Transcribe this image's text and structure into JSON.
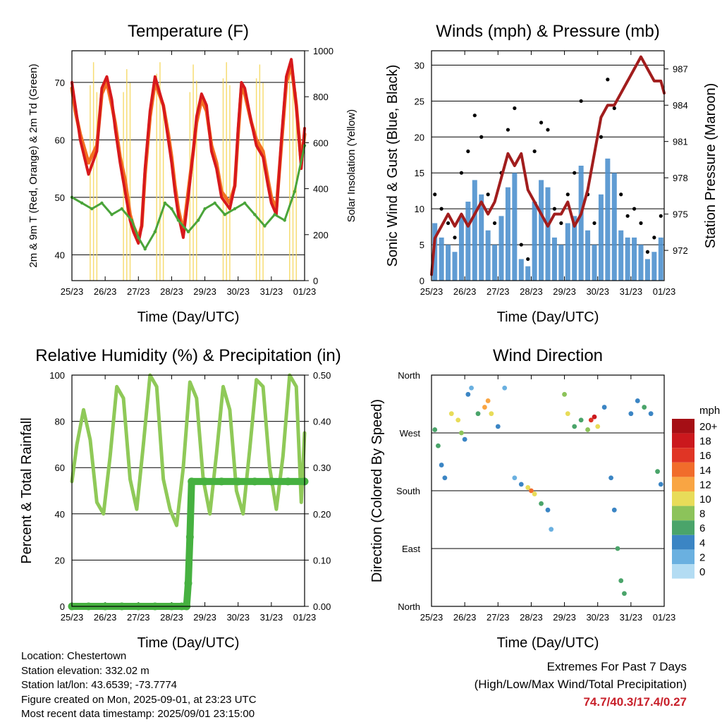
{
  "colors": {
    "temp2m": "#d7191c",
    "temp9m": "#f36f21",
    "dewpoint": "#4aa43a",
    "solar": "#f5d75a",
    "gust": "#000000",
    "wind": "#4f92cf",
    "pressure": "#a11d1d",
    "rh": "#8fc958",
    "precip": "#46b140",
    "grid": "#000000"
  },
  "x_ticks": [
    "25/23",
    "26/23",
    "27/23",
    "28/23",
    "29/23",
    "30/23",
    "31/23",
    "01/23"
  ],
  "chart_data": [
    {
      "type": "line",
      "title": "Temperature (F)",
      "xlabel": "Time (Day/UTC)",
      "ylabel": "2m & 9m T (Red, Orange) & 2m Td (Green)",
      "y2label": "Solar Insolation (Yellow)",
      "ylim": [
        35.5,
        75.5
      ],
      "yticks": [
        40,
        50,
        60,
        70
      ],
      "y2lim": [
        0,
        1000
      ],
      "y2ticks": [
        0,
        200,
        400,
        600,
        800,
        1000
      ],
      "x_days": [
        0,
        7
      ],
      "grid": true,
      "series": [
        {
          "key": "temp2m",
          "x": [
            0,
            0.1,
            0.25,
            0.5,
            0.75,
            0.9,
            1.05,
            1.2,
            1.3,
            1.45,
            1.6,
            1.75,
            1.85,
            2.0,
            2.1,
            2.2,
            2.35,
            2.5,
            2.75,
            2.9,
            3.0,
            3.1,
            3.2,
            3.35,
            3.5,
            3.65,
            3.75,
            3.9,
            4.05,
            4.2,
            4.35,
            4.5,
            4.75,
            4.9,
            5.0,
            5.1,
            5.2,
            5.4,
            5.55,
            5.75,
            5.9,
            6.0,
            6.15,
            6.3,
            6.45,
            6.6,
            6.75,
            6.9,
            7.0
          ],
          "y": [
            70,
            66,
            60,
            54,
            58,
            69,
            71,
            67,
            62,
            56,
            51,
            46,
            44,
            42,
            45,
            55,
            65,
            71,
            66,
            60,
            56,
            51,
            47,
            43,
            50,
            58,
            64,
            68,
            66,
            58,
            55,
            50,
            48,
            52,
            62,
            70,
            69,
            63,
            59,
            57,
            52,
            49,
            47,
            60,
            71,
            74,
            66,
            55,
            62
          ]
        },
        {
          "key": "temp9m",
          "x": [
            0,
            0.1,
            0.25,
            0.5,
            0.75,
            0.9,
            1.05,
            1.2,
            1.3,
            1.45,
            1.6,
            1.75,
            1.85,
            2.0,
            2.1,
            2.2,
            2.35,
            2.5,
            2.75,
            2.9,
            3.0,
            3.1,
            3.2,
            3.35,
            3.5,
            3.65,
            3.75,
            3.9,
            4.05,
            4.2,
            4.35,
            4.5,
            4.75,
            4.9,
            5.0,
            5.1,
            5.2,
            5.4,
            5.55,
            5.75,
            5.9,
            6.0,
            6.15,
            6.3,
            6.45,
            6.6,
            6.75,
            6.9,
            7.0
          ],
          "y": [
            69,
            65,
            61,
            56,
            59,
            68,
            70,
            66,
            63,
            57,
            53,
            47,
            45,
            43,
            45,
            54,
            64,
            70,
            66,
            61,
            57,
            52,
            48,
            44,
            51,
            58,
            63,
            67,
            65,
            59,
            56,
            51,
            49,
            52,
            61,
            69,
            68,
            63,
            60,
            58,
            53,
            50,
            48,
            59,
            70,
            73,
            66,
            56,
            61
          ]
        },
        {
          "key": "dewpoint",
          "x": [
            0,
            0.3,
            0.6,
            0.9,
            1.2,
            1.5,
            1.8,
            2.0,
            2.2,
            2.5,
            2.8,
            3.0,
            3.2,
            3.5,
            3.8,
            4.0,
            4.3,
            4.6,
            4.9,
            5.2,
            5.5,
            5.8,
            6.1,
            6.4,
            6.7,
            7.0
          ],
          "y": [
            50,
            49,
            48,
            49,
            47,
            48,
            46,
            43,
            41,
            44,
            49,
            48,
            46,
            44,
            46,
            48,
            49,
            47,
            48,
            49,
            47,
            45,
            47,
            46,
            51,
            59
          ]
        },
        {
          "key": "solar",
          "x": [
            0.55,
            0.65,
            0.75,
            1.55,
            1.65,
            1.75,
            2.55,
            2.65,
            2.75,
            3.55,
            3.65,
            3.75,
            4.55,
            4.65,
            4.75,
            5.55,
            5.65,
            5.75,
            6.55,
            6.65,
            6.75
          ],
          "y": [
            850,
            950,
            820,
            820,
            920,
            860,
            900,
            950,
            780,
            820,
            940,
            870,
            880,
            950,
            850,
            880,
            940,
            860,
            900,
            940,
            820
          ]
        }
      ]
    },
    {
      "type": "scatter",
      "title": "Winds (mph) & Pressure (mb)",
      "xlabel": "Time (Day/UTC)",
      "ylabel": "Sonic Wind & Gust (Blue, Black)",
      "y2label": "Station Pressure (Maroon)",
      "ylim": [
        0,
        32
      ],
      "yticks": [
        0,
        5,
        10,
        15,
        20,
        25,
        30
      ],
      "y2lim": [
        969.5,
        988.5
      ],
      "y2ticks": [
        972,
        975,
        978,
        981,
        984,
        987
      ],
      "x_days": [
        0,
        7
      ],
      "grid": true,
      "series": [
        {
          "key": "pressure",
          "x": [
            0,
            0.1,
            0.3,
            0.5,
            0.7,
            0.9,
            1.1,
            1.3,
            1.5,
            1.7,
            1.9,
            2.1,
            2.3,
            2.5,
            2.7,
            2.9,
            3.1,
            3.3,
            3.5,
            3.7,
            3.9,
            4.1,
            4.3,
            4.5,
            4.7,
            4.9,
            5.1,
            5.3,
            5.5,
            5.7,
            5.9,
            6.1,
            6.3,
            6.5,
            6.7,
            6.9,
            7.0
          ],
          "y": [
            970,
            973,
            974,
            975,
            974,
            975,
            974,
            975,
            976,
            975,
            976,
            978,
            980,
            979,
            980,
            977,
            976,
            975,
            974,
            975,
            975,
            976,
            974,
            975,
            977,
            980,
            983,
            984,
            984,
            985,
            986,
            987,
            988,
            987,
            986,
            986,
            985
          ]
        },
        {
          "key": "gust",
          "x": [
            0.1,
            0.3,
            0.5,
            0.7,
            0.9,
            1.1,
            1.3,
            1.5,
            1.7,
            1.9,
            2.1,
            2.3,
            2.5,
            2.7,
            2.9,
            3.1,
            3.3,
            3.5,
            3.7,
            3.9,
            4.1,
            4.3,
            4.5,
            4.7,
            4.9,
            5.1,
            5.3,
            5.5,
            5.7,
            5.9,
            6.1,
            6.3,
            6.5,
            6.7,
            6.9
          ],
          "y": [
            12,
            10,
            8,
            6,
            15,
            18,
            23,
            20,
            12,
            8,
            15,
            21,
            24,
            5,
            3,
            18,
            22,
            21,
            10,
            8,
            12,
            15,
            25,
            12,
            8,
            20,
            28,
            24,
            12,
            9,
            10,
            8,
            4,
            6,
            9
          ]
        },
        {
          "key": "wind",
          "x": [
            0.1,
            0.3,
            0.5,
            0.7,
            0.9,
            1.1,
            1.3,
            1.5,
            1.7,
            1.9,
            2.1,
            2.3,
            2.5,
            2.7,
            2.9,
            3.1,
            3.3,
            3.5,
            3.7,
            3.9,
            4.1,
            4.3,
            4.5,
            4.7,
            4.9,
            5.1,
            5.3,
            5.5,
            5.7,
            5.9,
            6.1,
            6.3,
            6.5,
            6.7,
            6.9
          ],
          "y": [
            8,
            6,
            5,
            4,
            9,
            11,
            14,
            12,
            7,
            5,
            9,
            13,
            15,
            3,
            2,
            11,
            14,
            13,
            6,
            5,
            8,
            9,
            16,
            7,
            5,
            12,
            17,
            15,
            7,
            6,
            6,
            5,
            3,
            4,
            6
          ]
        }
      ]
    },
    {
      "type": "line",
      "title": "Relative Humidity (%) & Precipitation (in)",
      "xlabel": "Time (Day/UTC)",
      "ylabel": "Percent & Total Rainfall",
      "ylim": [
        0,
        100
      ],
      "yticks": [
        0,
        20,
        40,
        60,
        80,
        100
      ],
      "y2lim": [
        0,
        0.5
      ],
      "y2ticks": [
        "0.00",
        "0.10",
        "0.20",
        "0.30",
        "0.40",
        "0.50"
      ],
      "x_days": [
        0,
        7
      ],
      "grid": true,
      "series": [
        {
          "key": "rh",
          "x": [
            0,
            0.15,
            0.35,
            0.55,
            0.75,
            0.95,
            1.15,
            1.35,
            1.55,
            1.75,
            1.95,
            2.15,
            2.35,
            2.55,
            2.75,
            2.95,
            3.15,
            3.35,
            3.55,
            3.75,
            3.95,
            4.15,
            4.35,
            4.55,
            4.75,
            4.95,
            5.15,
            5.35,
            5.55,
            5.75,
            5.95,
            6.15,
            6.35,
            6.55,
            6.75,
            6.9,
            7.0
          ],
          "y": [
            54,
            70,
            85,
            72,
            45,
            40,
            65,
            95,
            90,
            55,
            42,
            70,
            100,
            95,
            55,
            42,
            35,
            60,
            97,
            90,
            55,
            40,
            66,
            95,
            85,
            50,
            40,
            68,
            98,
            95,
            60,
            42,
            65,
            100,
            95,
            45,
            75
          ]
        },
        {
          "key": "precip",
          "x": [
            0,
            0.5,
            1.0,
            1.5,
            2.0,
            2.5,
            3.0,
            3.3,
            3.45,
            3.5,
            3.55,
            3.6,
            4.0,
            4.5,
            5.0,
            5.5,
            6.0,
            6.5,
            7.0
          ],
          "y": [
            0,
            0,
            0,
            0,
            0,
            0,
            0,
            0,
            0,
            0.05,
            0.15,
            0.27,
            0.27,
            0.27,
            0.27,
            0.27,
            0.27,
            0.27,
            0.27
          ]
        }
      ]
    },
    {
      "type": "scatter",
      "title": "Wind Direction",
      "xlabel": "Time (Day/UTC)",
      "ylabel": "Direction (Colored By Speed)",
      "ylim": [
        0,
        360
      ],
      "ytick_labels": [
        "North",
        "East",
        "South",
        "West",
        "North"
      ],
      "x_days": [
        0,
        7
      ],
      "grid": true,
      "legend": {
        "title": "mph",
        "labels": [
          "20+",
          "18",
          "16",
          "14",
          "12",
          "10",
          "8",
          "6",
          "4",
          "2",
          "0"
        ],
        "colors": [
          "#a50f15",
          "#cb181d",
          "#e03525",
          "#f16c2b",
          "#f9a543",
          "#e8dc59",
          "#8cc35a",
          "#4aa46a",
          "#3b85c4",
          "#6ab0e0",
          "#b3dcf3"
        ]
      },
      "points": [
        {
          "x": 0.1,
          "dir": 275,
          "spd": 6
        },
        {
          "x": 0.2,
          "dir": 250,
          "spd": 5
        },
        {
          "x": 0.3,
          "dir": 220,
          "spd": 4
        },
        {
          "x": 0.4,
          "dir": 200,
          "spd": 3
        },
        {
          "x": 0.6,
          "dir": 300,
          "spd": 9
        },
        {
          "x": 0.8,
          "dir": 290,
          "spd": 10
        },
        {
          "x": 0.9,
          "dir": 270,
          "spd": 8
        },
        {
          "x": 1.0,
          "dir": 260,
          "spd": 4
        },
        {
          "x": 1.1,
          "dir": 330,
          "spd": 3
        },
        {
          "x": 1.2,
          "dir": 340,
          "spd": 2
        },
        {
          "x": 1.4,
          "dir": 300,
          "spd": 6
        },
        {
          "x": 1.6,
          "dir": 310,
          "spd": 11
        },
        {
          "x": 1.7,
          "dir": 320,
          "spd": 12
        },
        {
          "x": 1.8,
          "dir": 300,
          "spd": 9
        },
        {
          "x": 2.0,
          "dir": 280,
          "spd": 4
        },
        {
          "x": 2.2,
          "dir": 340,
          "spd": 2
        },
        {
          "x": 2.5,
          "dir": 200,
          "spd": 1
        },
        {
          "x": 2.7,
          "dir": 190,
          "spd": 4
        },
        {
          "x": 2.9,
          "dir": 185,
          "spd": 10
        },
        {
          "x": 3.0,
          "dir": 180,
          "spd": 13
        },
        {
          "x": 3.1,
          "dir": 175,
          "spd": 9
        },
        {
          "x": 3.3,
          "dir": 160,
          "spd": 5
        },
        {
          "x": 3.5,
          "dir": 150,
          "spd": 4
        },
        {
          "x": 3.6,
          "dir": 120,
          "spd": 2
        },
        {
          "x": 4.0,
          "dir": 330,
          "spd": 7
        },
        {
          "x": 4.1,
          "dir": 300,
          "spd": 10
        },
        {
          "x": 4.3,
          "dir": 280,
          "spd": 5
        },
        {
          "x": 4.5,
          "dir": 290,
          "spd": 6
        },
        {
          "x": 4.7,
          "dir": 275,
          "spd": 8
        },
        {
          "x": 4.8,
          "dir": 290,
          "spd": 16
        },
        {
          "x": 4.9,
          "dir": 295,
          "spd": 18
        },
        {
          "x": 5.0,
          "dir": 280,
          "spd": 9
        },
        {
          "x": 5.2,
          "dir": 310,
          "spd": 4
        },
        {
          "x": 5.4,
          "dir": 200,
          "spd": 3
        },
        {
          "x": 5.5,
          "dir": 150,
          "spd": 4
        },
        {
          "x": 5.6,
          "dir": 90,
          "spd": 5
        },
        {
          "x": 5.7,
          "dir": 40,
          "spd": 6
        },
        {
          "x": 5.8,
          "dir": 20,
          "spd": 5
        },
        {
          "x": 6.0,
          "dir": 300,
          "spd": 3
        },
        {
          "x": 6.2,
          "dir": 320,
          "spd": 4
        },
        {
          "x": 6.4,
          "dir": 310,
          "spd": 5
        },
        {
          "x": 6.6,
          "dir": 300,
          "spd": 3
        },
        {
          "x": 6.8,
          "dir": 210,
          "spd": 6
        },
        {
          "x": 6.9,
          "dir": 190,
          "spd": 4
        }
      ]
    }
  ],
  "info": {
    "location": "Location: Chestertown",
    "elevation": "Station elevation: 332.02 m",
    "latlon": "Station lat/lon: 43.6539; -73.7774",
    "created": "Figure created on Mon, 2025-09-01, at 23:23 UTC",
    "recent": "Most recent data timestamp: 2025/09/01 23:15:00"
  },
  "extremes": {
    "title": "Extremes For Past 7 Days",
    "subtitle": "(High/Low/Max Wind/Total Precipitation)",
    "values": "74.7/40.3/17.4/0.27"
  }
}
